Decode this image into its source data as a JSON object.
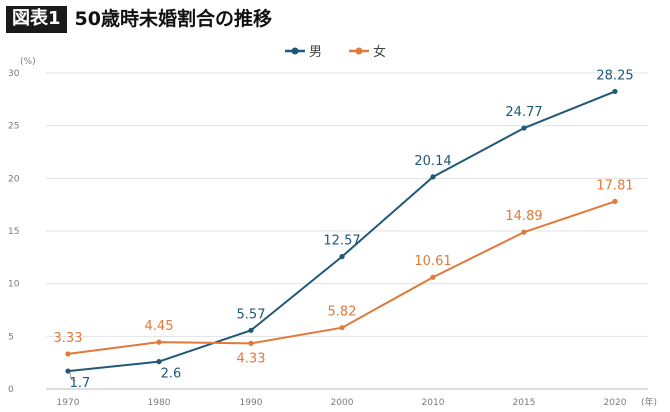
{
  "header": {
    "figure_tag": "図表1",
    "title": "50歳時未婚割合の推移"
  },
  "chart_data": {
    "type": "line",
    "categories": [
      "1970",
      "1980",
      "1990",
      "2000",
      "2010",
      "2015",
      "2020"
    ],
    "x_unit": "(年)",
    "y_unit": "(%)",
    "ylim": [
      0,
      30
    ],
    "yticks": [
      0,
      5,
      10,
      15,
      20,
      25,
      30
    ],
    "grid": true,
    "legend_position": "top-center",
    "series": [
      {
        "name": "男",
        "color": "#1f5878",
        "values": [
          1.7,
          2.6,
          5.57,
          12.57,
          20.14,
          24.77,
          28.25
        ],
        "labels": [
          "1.7",
          "2.6",
          "5.57",
          "12.57",
          "20.14",
          "24.77",
          "28.25"
        ]
      },
      {
        "name": "女",
        "color": "#e0793a",
        "values": [
          3.33,
          4.45,
          4.33,
          5.82,
          10.61,
          14.89,
          17.81
        ],
        "labels": [
          "3.33",
          "4.45",
          "4.33",
          "5.82",
          "10.61",
          "14.89",
          "17.81"
        ]
      }
    ]
  }
}
